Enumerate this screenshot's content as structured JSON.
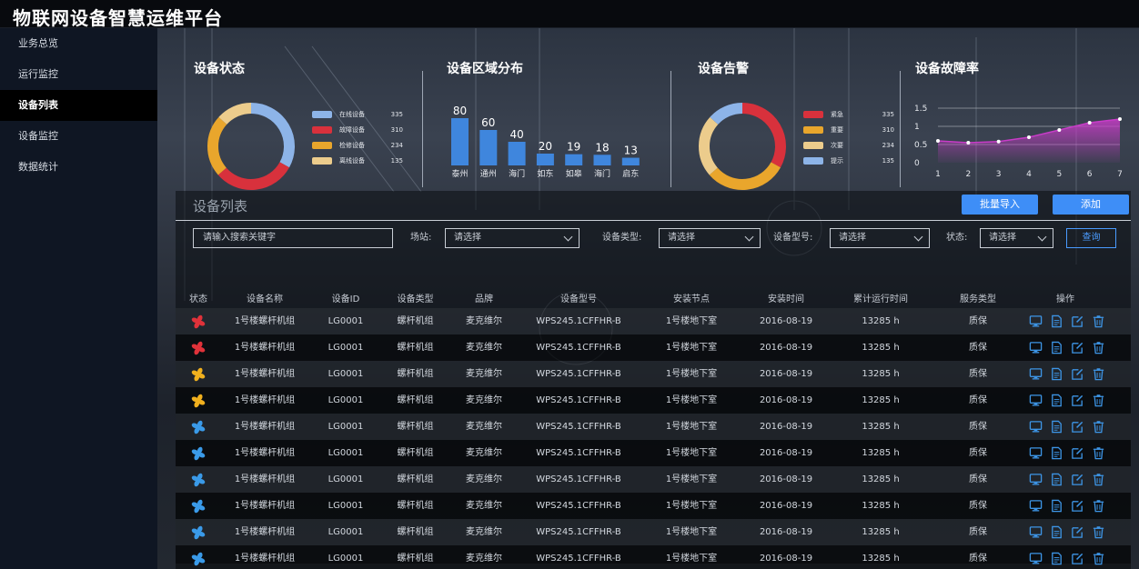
{
  "app": {
    "title": "物联网设备智慧运维平台"
  },
  "sidebar": {
    "items": [
      {
        "label": "业务总览",
        "active": false
      },
      {
        "label": "运行监控",
        "active": false
      },
      {
        "label": "设备列表",
        "active": true
      },
      {
        "label": "设备监控",
        "active": false
      },
      {
        "label": "数据统计",
        "active": false
      }
    ]
  },
  "status_panel": {
    "title": "设备状态",
    "legend": [
      {
        "label": "在线设备",
        "value": "335",
        "color": "#8db4e8"
      },
      {
        "label": "故障设备",
        "value": "310",
        "color": "#d8313c"
      },
      {
        "label": "检修设备",
        "value": "234",
        "color": "#e9a62c"
      },
      {
        "label": "离线设备",
        "value": "135",
        "color": "#eccc8c"
      }
    ]
  },
  "region_panel": {
    "title": "设备区域分布"
  },
  "alarm_panel": {
    "title": "设备告警",
    "legend": [
      {
        "label": "紧急",
        "value": "335",
        "color": "#d8313c"
      },
      {
        "label": "重要",
        "value": "310",
        "color": "#e9a62c"
      },
      {
        "label": "次要",
        "value": "234",
        "color": "#eccc8c"
      },
      {
        "label": "提示",
        "value": "135",
        "color": "#8db4e8"
      }
    ]
  },
  "fault_panel": {
    "title": "设备故障率"
  },
  "chart_data": [
    {
      "type": "pie",
      "title": "设备状态",
      "categories": [
        "在线设备",
        "故障设备",
        "检修设备",
        "离线设备"
      ],
      "values": [
        335,
        310,
        234,
        135
      ],
      "colors": [
        "#8db4e8",
        "#d8313c",
        "#e9a62c",
        "#eccc8c"
      ],
      "donut": true
    },
    {
      "type": "bar",
      "title": "设备区域分布",
      "categories": [
        "泰州",
        "通州",
        "海门",
        "如东",
        "如皋",
        "海门",
        "启东"
      ],
      "values": [
        80,
        60,
        40,
        20,
        19,
        18,
        13
      ],
      "color": "#3f86dd",
      "data_labels": true
    },
    {
      "type": "pie",
      "title": "设备告警",
      "categories": [
        "紧急",
        "重要",
        "次要",
        "提示"
      ],
      "values": [
        335,
        310,
        234,
        135
      ],
      "colors": [
        "#d8313c",
        "#e9a62c",
        "#eccc8c",
        "#8db4e8"
      ],
      "donut": true
    },
    {
      "type": "area",
      "title": "设备故障率",
      "x": [
        1,
        2,
        3,
        4,
        5,
        6,
        7
      ],
      "values": [
        0.6,
        0.55,
        0.58,
        0.7,
        0.9,
        1.1,
        1.2
      ],
      "yticks": [
        "0",
        "0.5",
        "1",
        "1.5"
      ],
      "ylim": [
        0,
        1.5
      ],
      "color": "#c83cc8"
    }
  ],
  "list": {
    "title": "设备列表",
    "import_label": "批量导入",
    "add_label": "添加",
    "search_placeholder": "请输入搜索关键字",
    "filters": [
      {
        "label": "场站:",
        "value": "请选择"
      },
      {
        "label": "设备类型:",
        "value": "请选择"
      },
      {
        "label": "设备型号:",
        "value": "请选择"
      },
      {
        "label": "状态:",
        "value": "请选择"
      }
    ],
    "query_label": "查询",
    "columns": [
      "状态",
      "设备名称",
      "设备ID",
      "设备类型",
      "品牌",
      "设备型号",
      "安装节点",
      "安装时间",
      "累计运行时间",
      "服务类型",
      "操作"
    ],
    "rows": [
      {
        "status": "fault",
        "name": "1号楼螺杆机组",
        "id": "LG0001",
        "type": "螺杆机组",
        "brand": "麦克维尔",
        "model": "WPS245.1CFFHR-B",
        "node": "1号楼地下室",
        "date": "2016-08-19",
        "runtime": "13285 h",
        "service": "质保"
      },
      {
        "status": "fault",
        "name": "1号楼螺杆机组",
        "id": "LG0001",
        "type": "螺杆机组",
        "brand": "麦克维尔",
        "model": "WPS245.1CFFHR-B",
        "node": "1号楼地下室",
        "date": "2016-08-19",
        "runtime": "13285 h",
        "service": "质保"
      },
      {
        "status": "maintenance",
        "name": "1号楼螺杆机组",
        "id": "LG0001",
        "type": "螺杆机组",
        "brand": "麦克维尔",
        "model": "WPS245.1CFFHR-B",
        "node": "1号楼地下室",
        "date": "2016-08-19",
        "runtime": "13285 h",
        "service": "质保"
      },
      {
        "status": "maintenance",
        "name": "1号楼螺杆机组",
        "id": "LG0001",
        "type": "螺杆机组",
        "brand": "麦克维尔",
        "model": "WPS245.1CFFHR-B",
        "node": "1号楼地下室",
        "date": "2016-08-19",
        "runtime": "13285 h",
        "service": "质保"
      },
      {
        "status": "online",
        "name": "1号楼螺杆机组",
        "id": "LG0001",
        "type": "螺杆机组",
        "brand": "麦克维尔",
        "model": "WPS245.1CFFHR-B",
        "node": "1号楼地下室",
        "date": "2016-08-19",
        "runtime": "13285 h",
        "service": "质保"
      },
      {
        "status": "online",
        "name": "1号楼螺杆机组",
        "id": "LG0001",
        "type": "螺杆机组",
        "brand": "麦克维尔",
        "model": "WPS245.1CFFHR-B",
        "node": "1号楼地下室",
        "date": "2016-08-19",
        "runtime": "13285 h",
        "service": "质保"
      },
      {
        "status": "online",
        "name": "1号楼螺杆机组",
        "id": "LG0001",
        "type": "螺杆机组",
        "brand": "麦克维尔",
        "model": "WPS245.1CFFHR-B",
        "node": "1号楼地下室",
        "date": "2016-08-19",
        "runtime": "13285 h",
        "service": "质保"
      },
      {
        "status": "online",
        "name": "1号楼螺杆机组",
        "id": "LG0001",
        "type": "螺杆机组",
        "brand": "麦克维尔",
        "model": "WPS245.1CFFHR-B",
        "node": "1号楼地下室",
        "date": "2016-08-19",
        "runtime": "13285 h",
        "service": "质保"
      },
      {
        "status": "online",
        "name": "1号楼螺杆机组",
        "id": "LG0001",
        "type": "螺杆机组",
        "brand": "麦克维尔",
        "model": "WPS245.1CFFHR-B",
        "node": "1号楼地下室",
        "date": "2016-08-19",
        "runtime": "13285 h",
        "service": "质保"
      },
      {
        "status": "online",
        "name": "1号楼螺杆机组",
        "id": "LG0001",
        "type": "螺杆机组",
        "brand": "麦克维尔",
        "model": "WPS245.1CFFHR-B",
        "node": "1号楼地下室",
        "date": "2016-08-19",
        "runtime": "13285 h",
        "service": "质保"
      }
    ],
    "status_colors": {
      "fault": "#e0323a",
      "maintenance": "#f0b01e",
      "online": "#3a9ae8"
    },
    "action_icons": [
      "monitor-icon",
      "document-icon",
      "edit-icon",
      "delete-icon"
    ],
    "action_color": "#3d95e6"
  }
}
